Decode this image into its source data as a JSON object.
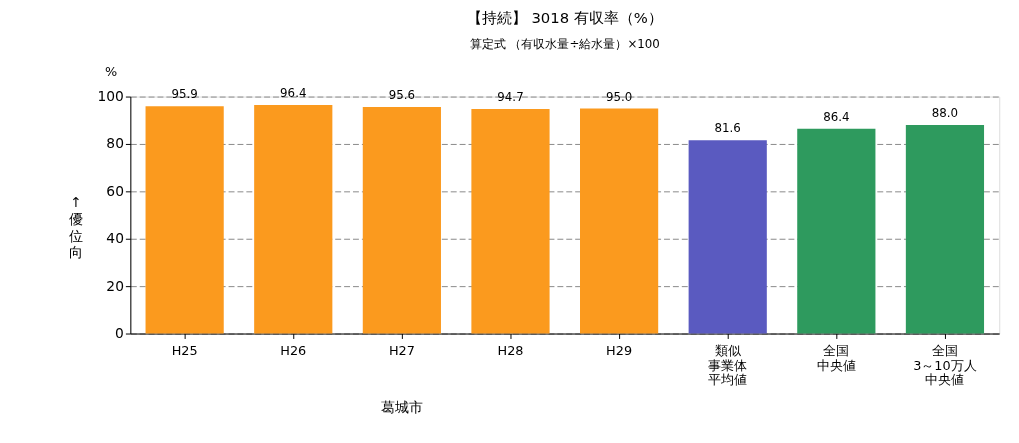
{
  "chart_data": {
    "type": "bar",
    "title": "【持続】 3018 有収率（%）",
    "subtitle": "算定式 （有収水量÷給水量）×100",
    "ylabel": "%",
    "categories": [
      "H25",
      "H26",
      "H27",
      "H28",
      "H29",
      "類似事業体平均値",
      "全国中央値",
      "全国3～10万人中央値"
    ],
    "values": [
      95.9,
      96.4,
      95.6,
      94.7,
      95.0,
      81.6,
      86.4,
      88.0
    ],
    "value_labels": [
      "95.9",
      "96.4",
      "95.6",
      "94.7",
      "95.0",
      "81.6",
      "86.4",
      "88.0"
    ],
    "colors": [
      "#fb9a1e",
      "#fb9a1e",
      "#fb9a1e",
      "#fb9a1e",
      "#fb9a1e",
      "#5a5ac0",
      "#2e9a5e",
      "#2e9a5e"
    ],
    "ylim": [
      0,
      100
    ],
    "yticks": [
      0,
      20,
      40,
      60,
      80,
      100
    ],
    "grid": "y",
    "annotations": [
      "↑優位向",
      "葛城市"
    ]
  }
}
